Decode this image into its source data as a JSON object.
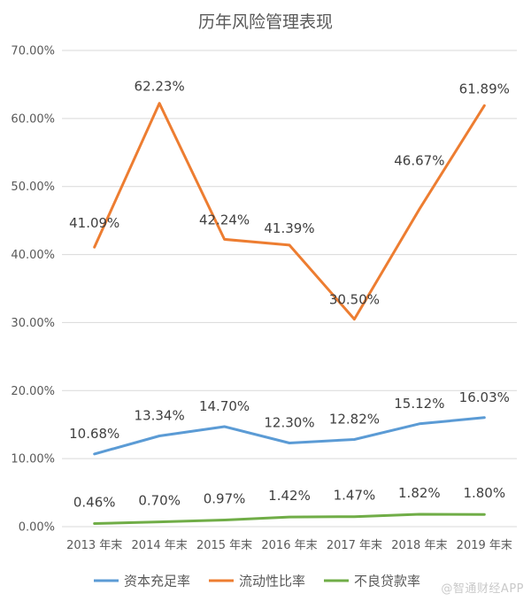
{
  "chart_data": {
    "type": "line",
    "title": "历年风险管理表现",
    "categories": [
      "2013 年末",
      "2014 年末",
      "2015 年末",
      "2016 年末",
      "2017 年末",
      "2018 年末",
      "2019 年末"
    ],
    "ylim": [
      0,
      70
    ],
    "ytick_values": [
      0,
      10,
      20,
      30,
      40,
      50,
      60,
      70
    ],
    "ytick_labels": [
      "0.00%",
      "10.00%",
      "20.00%",
      "30.00%",
      "40.00%",
      "50.00%",
      "60.00%",
      "70.00%"
    ],
    "grid": true,
    "legend_position": "bottom",
    "series": [
      {
        "name": "资本充足率",
        "color": "#5b9bd5",
        "values": [
          10.68,
          13.34,
          14.7,
          12.3,
          12.82,
          15.12,
          16.03
        ],
        "labels": [
          "10.68%",
          "13.34%",
          "14.70%",
          "12.30%",
          "12.82%",
          "15.12%",
          "16.03%"
        ]
      },
      {
        "name": "流动性比率",
        "color": "#ed7d31",
        "values": [
          41.09,
          62.23,
          42.24,
          41.39,
          30.5,
          46.67,
          61.89
        ],
        "labels": [
          "41.09%",
          "62.23%",
          "42.24%",
          "41.39%",
          "30.50%",
          "46.67%",
          "61.89%"
        ]
      },
      {
        "name": "不良贷款率",
        "color": "#70ad47",
        "values": [
          0.46,
          0.7,
          0.97,
          1.42,
          1.47,
          1.82,
          1.8
        ],
        "labels": [
          "0.46%",
          "0.70%",
          "0.97%",
          "1.42%",
          "1.47%",
          "1.82%",
          "1.80%"
        ]
      }
    ]
  },
  "watermark": "@智通财经APP"
}
